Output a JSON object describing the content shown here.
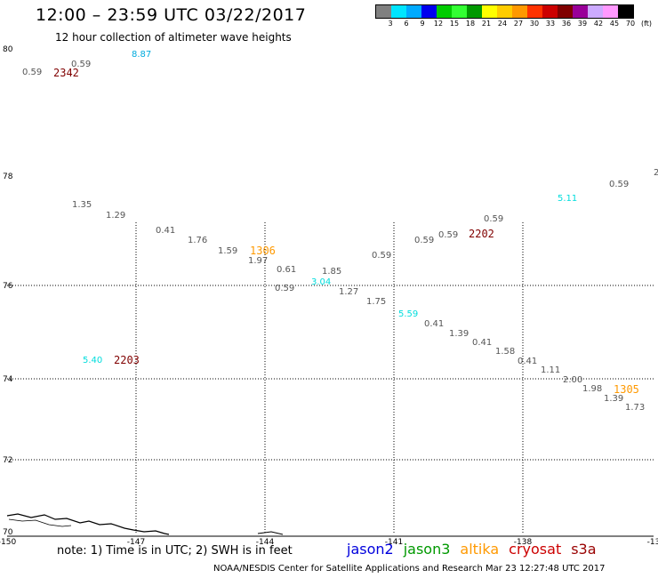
{
  "header": {
    "title": "12:00 – 23:59 UTC 03/22/2017",
    "subtitle": "12 hour collection of altimeter wave heights"
  },
  "legend": {
    "colors": [
      "#808080",
      "#00e5ff",
      "#00aaff",
      "#0000ee",
      "#00cc00",
      "#33ff33",
      "#009900",
      "#ffff00",
      "#ffcc00",
      "#ff9900",
      "#ff3300",
      "#cc0000",
      "#800000",
      "#990099",
      "#ccaaff",
      "#ff99ff",
      "#000000"
    ],
    "labels": [
      "3",
      "6",
      "9",
      "12",
      "15",
      "18",
      "21",
      "24",
      "27",
      "30",
      "33",
      "36",
      "39",
      "42",
      "45",
      "70",
      "(ft)"
    ]
  },
  "axes": {
    "lat_labels": [
      "80",
      "78",
      "76",
      "74",
      "72",
      "70"
    ],
    "lon_labels": [
      "-150",
      "-147",
      "-144",
      "-141",
      "-138",
      "-13"
    ]
  },
  "wave_heights": [
    {
      "text": "0.59",
      "color": "#555555"
    },
    {
      "text": "0.59",
      "color": "#555555"
    },
    {
      "text": "8.87",
      "color": "#00aadd"
    },
    {
      "text": "1.35",
      "color": "#555555"
    },
    {
      "text": "1.29",
      "color": "#555555"
    },
    {
      "text": "0.41",
      "color": "#555555"
    },
    {
      "text": "1.76",
      "color": "#555555"
    },
    {
      "text": "1.59",
      "color": "#555555"
    },
    {
      "text": "1.97",
      "color": "#555555"
    },
    {
      "text": "0.61",
      "color": "#555555"
    },
    {
      "text": "0.59",
      "color": "#555555"
    },
    {
      "text": "1.85",
      "color": "#555555"
    },
    {
      "text": "3.04",
      "color": "#00dddd"
    },
    {
      "text": "1.27",
      "color": "#555555"
    },
    {
      "text": "1.75",
      "color": "#555555"
    },
    {
      "text": "0.59",
      "color": "#555555"
    },
    {
      "text": "0.59",
      "color": "#555555"
    },
    {
      "text": "0.59",
      "color": "#555555"
    },
    {
      "text": "0.59",
      "color": "#555555"
    },
    {
      "text": "5.59",
      "color": "#00dddd"
    },
    {
      "text": "0.41",
      "color": "#555555"
    },
    {
      "text": "1.39",
      "color": "#555555"
    },
    {
      "text": "0.41",
      "color": "#555555"
    },
    {
      "text": "1.58",
      "color": "#555555"
    },
    {
      "text": "0.41",
      "color": "#555555"
    },
    {
      "text": "1.11",
      "color": "#555555"
    },
    {
      "text": "2.00",
      "color": "#555555"
    },
    {
      "text": "1.98",
      "color": "#555555"
    },
    {
      "text": "1.39",
      "color": "#555555"
    },
    {
      "text": "1.73",
      "color": "#555555"
    },
    {
      "text": "5.11",
      "color": "#00dddd"
    },
    {
      "text": "0.59",
      "color": "#555555"
    },
    {
      "text": "5.40",
      "color": "#00dddd"
    },
    {
      "text": "2",
      "color": "#555555"
    }
  ],
  "pass_times": [
    {
      "text": "2342",
      "color": "#800000"
    },
    {
      "text": "1306",
      "color": "#ff9900"
    },
    {
      "text": "2202",
      "color": "#800000"
    },
    {
      "text": "2203",
      "color": "#800000"
    },
    {
      "text": "1305",
      "color": "#ff9900"
    }
  ],
  "footer": {
    "note": "note: 1) Time is in UTC; 2) SWH is in feet",
    "satellites": [
      {
        "name": "jason2",
        "color": "#0000dd"
      },
      {
        "name": "jason3",
        "color": "#009900"
      },
      {
        "name": "altika",
        "color": "#ff9900"
      },
      {
        "name": "cryosat",
        "color": "#cc0000"
      },
      {
        "name": "s3a",
        "color": "#990000"
      }
    ],
    "credit": "NOAA/NESDIS Center for Satellite Applications and Research    Mar 23 12:27:48 UTC 2017"
  }
}
